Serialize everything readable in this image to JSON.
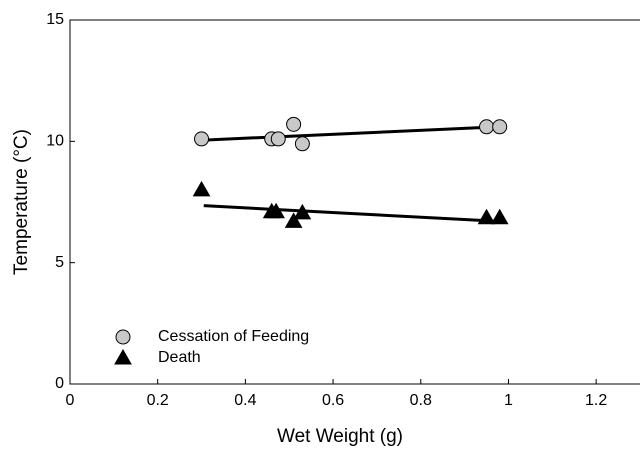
{
  "chart_data": {
    "type": "scatter",
    "x_label": "Wet Weight (g)",
    "y_label": "Temperature (°C)",
    "xlim": [
      0,
      1.3
    ],
    "ylim": [
      0,
      15
    ],
    "xticks": [
      0,
      0.2,
      0.4,
      0.6,
      0.8,
      1,
      1.2
    ],
    "yticks": [
      0,
      5,
      10,
      15
    ],
    "legend": "lower left",
    "series": [
      {
        "name": "Cessation of Feeding",
        "marker": "circle",
        "color": "#c8c8c8",
        "x": [
          0.3,
          0.46,
          0.475,
          0.51,
          0.53,
          0.95,
          0.98
        ],
        "values": [
          10.1,
          10.1,
          10.1,
          10.7,
          9.9,
          10.6,
          10.6
        ],
        "fit": {
          "x": [
            0.305,
            0.98
          ],
          "values": [
            10.05,
            10.6
          ]
        }
      },
      {
        "name": "Death",
        "marker": "triangle",
        "color": "#000000",
        "x": [
          0.3,
          0.46,
          0.47,
          0.51,
          0.53,
          0.95,
          0.98
        ],
        "values": [
          8.0,
          7.1,
          7.1,
          6.7,
          7.05,
          6.85,
          6.85
        ],
        "fit": {
          "x": [
            0.305,
            0.98
          ],
          "values": [
            7.35,
            6.7
          ]
        }
      }
    ]
  }
}
